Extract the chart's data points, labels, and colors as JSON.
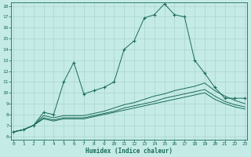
{
  "xlabel": "Humidex (Indice chaleur)",
  "xlim": [
    0,
    23
  ],
  "ylim": [
    6,
    18
  ],
  "xticks": [
    0,
    1,
    2,
    3,
    4,
    5,
    6,
    7,
    8,
    9,
    10,
    11,
    12,
    13,
    14,
    15,
    16,
    17,
    18,
    19,
    20,
    21,
    22,
    23
  ],
  "yticks": [
    6,
    7,
    8,
    9,
    10,
    11,
    12,
    13,
    14,
    15,
    16,
    17,
    18
  ],
  "bg_color": "#c5ebe6",
  "grid_color": "#aad4cf",
  "line_color": "#1a6b5a",
  "lines": [
    {
      "x": [
        0,
        1,
        2,
        3,
        4,
        5,
        6,
        7,
        8,
        9,
        10,
        11,
        12,
        13,
        14,
        15,
        16,
        17,
        18,
        19,
        20,
        21,
        22,
        23
      ],
      "y": [
        6.4,
        6.6,
        7.0,
        8.2,
        8.0,
        11.0,
        12.8,
        9.9,
        10.2,
        10.5,
        11.0,
        14.0,
        14.8,
        16.9,
        17.2,
        18.2,
        17.2,
        17.0,
        13.0,
        11.8,
        10.5,
        9.5,
        9.5,
        9.5
      ],
      "marker": "+"
    },
    {
      "x": [
        0,
        1,
        2,
        3,
        4,
        5,
        6,
        7,
        8,
        9,
        10,
        11,
        12,
        13,
        14,
        15,
        16,
        17,
        18,
        19,
        20,
        21,
        22,
        23
      ],
      "y": [
        6.4,
        6.6,
        7.0,
        7.9,
        7.7,
        7.9,
        7.9,
        7.9,
        8.1,
        8.3,
        8.6,
        8.9,
        9.1,
        9.4,
        9.7,
        9.9,
        10.2,
        10.4,
        10.6,
        10.9,
        10.2,
        9.7,
        9.3,
        9.0
      ],
      "marker": null
    },
    {
      "x": [
        0,
        1,
        2,
        3,
        4,
        5,
        6,
        7,
        8,
        9,
        10,
        11,
        12,
        13,
        14,
        15,
        16,
        17,
        18,
        19,
        20,
        21,
        22,
        23
      ],
      "y": [
        6.4,
        6.6,
        7.0,
        7.7,
        7.5,
        7.7,
        7.7,
        7.7,
        7.9,
        8.1,
        8.3,
        8.6,
        8.8,
        9.0,
        9.2,
        9.5,
        9.7,
        9.9,
        10.1,
        10.3,
        9.7,
        9.2,
        8.9,
        8.7
      ],
      "marker": null
    },
    {
      "x": [
        0,
        1,
        2,
        3,
        4,
        5,
        6,
        7,
        8,
        9,
        10,
        11,
        12,
        13,
        14,
        15,
        16,
        17,
        18,
        19,
        20,
        21,
        22,
        23
      ],
      "y": [
        6.4,
        6.6,
        7.0,
        7.6,
        7.4,
        7.6,
        7.6,
        7.6,
        7.8,
        8.0,
        8.2,
        8.4,
        8.6,
        8.8,
        9.0,
        9.2,
        9.4,
        9.6,
        9.8,
        10.0,
        9.4,
        9.0,
        8.7,
        8.5
      ],
      "marker": null
    }
  ]
}
